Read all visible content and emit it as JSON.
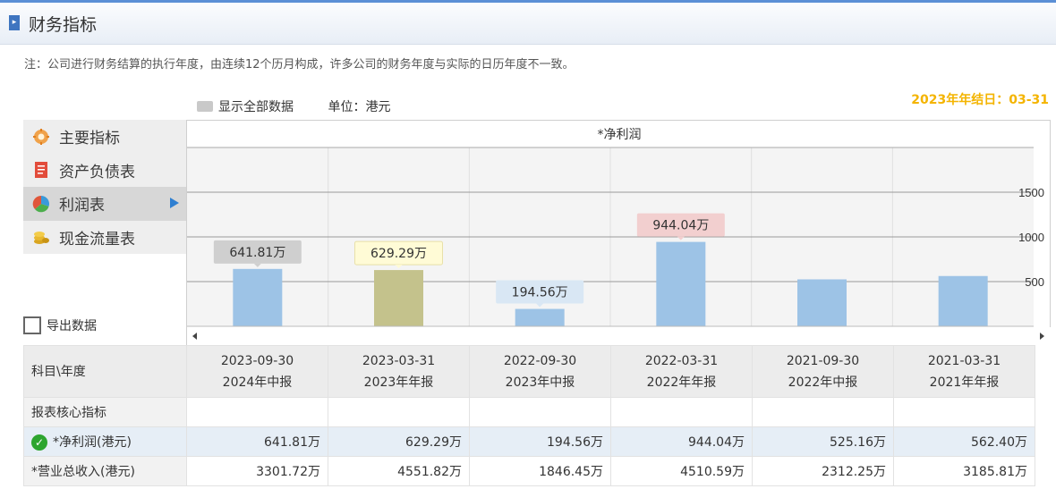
{
  "header": {
    "title": "财务指标"
  },
  "note": "注：公司进行财务结算的执行年度，由连续12个历月构成，许多公司的财务年度与实际的日历年度不一致。",
  "year_end": "2023年年结日：03-31",
  "toolbar": {
    "show_all_label": "显示全部数据",
    "unit": "单位：港元"
  },
  "sidebar": {
    "items": [
      {
        "label": "主要指标",
        "icon": "gear-flower-icon"
      },
      {
        "label": "资产负债表",
        "icon": "document-icon"
      },
      {
        "label": "利润表",
        "icon": "pie-chart-icon",
        "active": true
      },
      {
        "label": "现金流量表",
        "icon": "coins-icon"
      }
    ],
    "export_label": "导出数据"
  },
  "chart_data": {
    "type": "bar",
    "title": "*净利润",
    "categories": [
      "2023-09-30",
      "2023-03-31",
      "2022-09-30",
      "2022-03-31",
      "2021-09-30",
      "2021-03-31"
    ],
    "values": [
      641.81,
      629.29,
      194.56,
      944.04,
      525.16,
      562.4
    ],
    "data_labels": [
      "641.81万",
      "629.29万",
      "194.56万",
      "944.04万",
      "",
      ""
    ],
    "bar_colors": [
      "#9dc3e6",
      "#c4c28c",
      "#9dc3e6",
      "#9dc3e6",
      "#9dc3e6",
      "#9dc3e6"
    ],
    "label_colors": [
      "#cfcfcf",
      "#fffbd6",
      "#d9e7f4",
      "#f2cfcf",
      "",
      ""
    ],
    "yticks": [
      "500",
      "1000",
      "1500"
    ],
    "ylim": [
      0,
      2000
    ],
    "grid": true
  },
  "table": {
    "corner": "科目\\年度",
    "columns": [
      {
        "date": "2023-09-30",
        "report": "2024年中报"
      },
      {
        "date": "2023-03-31",
        "report": "2023年年报"
      },
      {
        "date": "2022-09-30",
        "report": "2023年中报"
      },
      {
        "date": "2022-03-31",
        "report": "2022年年报"
      },
      {
        "date": "2021-09-30",
        "report": "2022年中报"
      },
      {
        "date": "2021-03-31",
        "report": "2021年年报"
      }
    ],
    "section": "报表核心指标",
    "rows": [
      {
        "label": "*净利润(港元)",
        "values": [
          "641.81万",
          "629.29万",
          "194.56万",
          "944.04万",
          "525.16万",
          "562.40万"
        ]
      },
      {
        "label": "*营业总收入(港元)",
        "values": [
          "3301.72万",
          "4551.82万",
          "1846.45万",
          "4510.59万",
          "2312.25万",
          "3185.81万"
        ]
      }
    ]
  }
}
